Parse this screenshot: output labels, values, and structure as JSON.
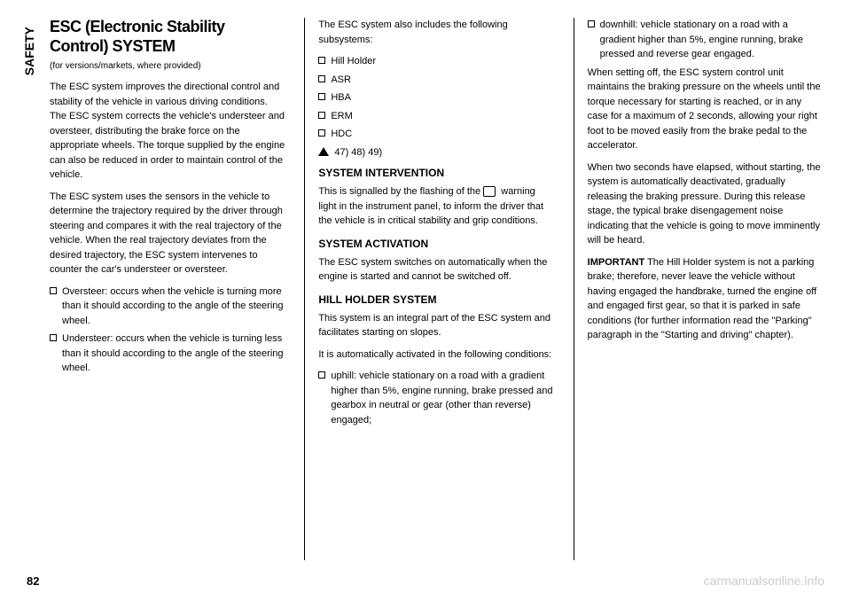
{
  "sidebar": {
    "label": "SAFETY"
  },
  "column1": {
    "heading": "ESC (Electronic Stability Control) SYSTEM",
    "subtitle": "(for versions/markets, where provided)",
    "p1": "The ESC system improves the directional control and stability of the vehicle in various driving conditions. The ESC system corrects the vehicle's understeer and oversteer, distributing the brake force on the appropriate wheels. The torque supplied by the engine can also be reduced in order to maintain control of the vehicle.",
    "p2": "The ESC system uses the sensors in the vehicle to determine the trajectory required by the driver through steering and compares it with the real trajectory of the vehicle. When the real trajectory deviates from the desired trajectory, the ESC system intervenes to counter the car's understeer or oversteer.",
    "bullet1": "Oversteer: occurs when the vehicle is turning more than it should according to the angle of the steering wheel.",
    "bullet2": "Understeer: occurs when the vehicle is turning less than it should according to the angle of the steering wheel."
  },
  "column2": {
    "intro": "The ESC system also includes the following subsystems:",
    "sub1": "Hill Holder",
    "sub2": "ASR",
    "sub3": "HBA",
    "sub4": "ERM",
    "sub5": "HDC",
    "warning_ref": "47) 48) 49)",
    "heading1": "SYSTEM INTERVENTION",
    "p1a": "This is signalled by the flashing of the",
    "p1b": "warning light in the instrument panel, to inform the driver that the vehicle is in critical stability and grip conditions.",
    "heading2": "SYSTEM ACTIVATION",
    "p2": "The ESC system switches on automatically when the engine is started and cannot be switched off.",
    "heading3": "HILL HOLDER SYSTEM",
    "p3": "This system is an integral part of the ESC system and facilitates starting on slopes.",
    "p4": "It is automatically activated in the following conditions:",
    "bullet1": "uphill: vehicle stationary on a road with a gradient higher than 5%, engine running, brake pressed and gearbox in neutral or gear (other than reverse) engaged;"
  },
  "column3": {
    "bullet1": "downhill: vehicle stationary on a road with a gradient higher than 5%, engine running, brake pressed and reverse gear engaged.",
    "p1": "When setting off, the ESC system control unit maintains the braking pressure on the wheels until the torque necessary for starting is reached, or in any case for a maximum of 2 seconds, allowing your right foot to be moved easily from the brake pedal to the accelerator.",
    "p2": "When two seconds have elapsed, without starting, the system is automatically deactivated, gradually releasing the braking pressure. During this release stage, the typical brake disengagement noise indicating that the vehicle is going to move imminently will be heard.",
    "important_label": "IMPORTANT",
    "p3": " The Hill Holder system is not a parking brake; therefore, never leave the vehicle without having engaged the handbrake, turned the engine off and engaged first gear, so that it is parked in safe conditions (for further information read the \"Parking\" paragraph in the \"Starting and driving\" chapter)."
  },
  "footer": {
    "page_number": "82",
    "watermark": "carmanualsonline.info"
  }
}
